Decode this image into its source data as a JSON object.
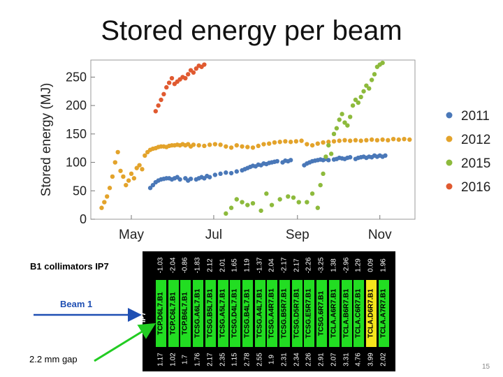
{
  "title": "Stored energy per beam",
  "page_number": "15",
  "chart_data": {
    "type": "scatter",
    "title": "Stored energy per beam",
    "xlabel": "",
    "ylabel": "Stored energy (MJ)",
    "xlim": [
      0,
      240
    ],
    "ylim": [
      0,
      280
    ],
    "x_unit": "days since April 1",
    "xtick_labels": [
      {
        "label": "May",
        "x": 30
      },
      {
        "label": "Jul",
        "x": 91
      },
      {
        "label": "Sep",
        "x": 153
      },
      {
        "label": "Nov",
        "x": 214
      }
    ],
    "yticks": [
      0,
      50,
      100,
      150,
      200,
      250
    ],
    "legend_position": "right",
    "series": [
      {
        "name": "2011",
        "color": "#4a78b8",
        "points": [
          [
            44,
            55
          ],
          [
            46,
            60
          ],
          [
            48,
            65
          ],
          [
            50,
            68
          ],
          [
            52,
            70
          ],
          [
            54,
            71
          ],
          [
            56,
            72
          ],
          [
            58,
            72
          ],
          [
            60,
            70
          ],
          [
            62,
            72
          ],
          [
            64,
            74
          ],
          [
            66,
            70
          ],
          [
            70,
            72
          ],
          [
            72,
            68
          ],
          [
            74,
            71
          ],
          [
            78,
            70
          ],
          [
            80,
            72
          ],
          [
            82,
            74
          ],
          [
            84,
            72
          ],
          [
            86,
            76
          ],
          [
            88,
            74
          ],
          [
            92,
            78
          ],
          [
            96,
            80
          ],
          [
            100,
            82
          ],
          [
            104,
            81
          ],
          [
            108,
            84
          ],
          [
            112,
            86
          ],
          [
            114,
            88
          ],
          [
            116,
            90
          ],
          [
            118,
            92
          ],
          [
            120,
            94
          ],
          [
            122,
            93
          ],
          [
            124,
            96
          ],
          [
            126,
            95
          ],
          [
            128,
            98
          ],
          [
            130,
            97
          ],
          [
            132,
            99
          ],
          [
            134,
            100
          ],
          [
            136,
            101
          ],
          [
            138,
            102
          ],
          [
            142,
            100
          ],
          [
            144,
            103
          ],
          [
            146,
            102
          ],
          [
            148,
            104
          ],
          [
            158,
            95
          ],
          [
            160,
            98
          ],
          [
            162,
            100
          ],
          [
            164,
            102
          ],
          [
            166,
            103
          ],
          [
            168,
            104
          ],
          [
            170,
            105
          ],
          [
            172,
            104
          ],
          [
            174,
            106
          ],
          [
            176,
            104
          ],
          [
            180,
            105
          ],
          [
            182,
            106
          ],
          [
            184,
            108
          ],
          [
            186,
            107
          ],
          [
            188,
            106
          ],
          [
            190,
            108
          ],
          [
            192,
            109
          ],
          [
            196,
            106
          ],
          [
            198,
            108
          ],
          [
            200,
            109
          ],
          [
            202,
            110
          ],
          [
            204,
            108
          ],
          [
            206,
            110
          ],
          [
            208,
            109
          ],
          [
            210,
            112
          ],
          [
            212,
            110
          ],
          [
            214,
            112
          ],
          [
            216,
            110
          ],
          [
            218,
            112
          ]
        ]
      },
      {
        "name": "2012",
        "color": "#e3a32b",
        "points": [
          [
            8,
            20
          ],
          [
            10,
            30
          ],
          [
            12,
            40
          ],
          [
            14,
            55
          ],
          [
            16,
            75
          ],
          [
            18,
            100
          ],
          [
            20,
            118
          ],
          [
            22,
            85
          ],
          [
            24,
            75
          ],
          [
            26,
            60
          ],
          [
            28,
            68
          ],
          [
            30,
            80
          ],
          [
            32,
            72
          ],
          [
            34,
            90
          ],
          [
            36,
            95
          ],
          [
            38,
            88
          ],
          [
            40,
            112
          ],
          [
            42,
            118
          ],
          [
            44,
            122
          ],
          [
            46,
            124
          ],
          [
            48,
            125
          ],
          [
            50,
            127
          ],
          [
            52,
            128
          ],
          [
            54,
            128
          ],
          [
            56,
            127
          ],
          [
            58,
            129
          ],
          [
            60,
            130
          ],
          [
            62,
            130
          ],
          [
            64,
            131
          ],
          [
            66,
            130
          ],
          [
            68,
            132
          ],
          [
            70,
            130
          ],
          [
            72,
            132
          ],
          [
            74,
            128
          ],
          [
            76,
            131
          ],
          [
            80,
            130
          ],
          [
            84,
            129
          ],
          [
            88,
            131
          ],
          [
            92,
            132
          ],
          [
            96,
            131
          ],
          [
            100,
            128
          ],
          [
            104,
            126
          ],
          [
            108,
            130
          ],
          [
            112,
            128
          ],
          [
            116,
            127
          ],
          [
            120,
            126
          ],
          [
            124,
            129
          ],
          [
            128,
            132
          ],
          [
            132,
            133
          ],
          [
            136,
            135
          ],
          [
            140,
            136
          ],
          [
            144,
            137
          ],
          [
            148,
            136
          ],
          [
            152,
            137
          ],
          [
            156,
            138
          ],
          [
            160,
            132
          ],
          [
            164,
            130
          ],
          [
            168,
            133
          ],
          [
            172,
            135
          ],
          [
            176,
            136
          ],
          [
            180,
            137
          ],
          [
            184,
            138
          ],
          [
            188,
            139
          ],
          [
            192,
            138
          ],
          [
            196,
            139
          ],
          [
            200,
            138
          ],
          [
            204,
            139
          ],
          [
            208,
            140
          ],
          [
            212,
            139
          ],
          [
            216,
            140
          ],
          [
            220,
            139
          ],
          [
            224,
            141
          ],
          [
            228,
            140
          ],
          [
            232,
            141
          ],
          [
            236,
            140
          ]
        ]
      },
      {
        "name": "2015",
        "color": "#8dba3c",
        "points": [
          [
            100,
            10
          ],
          [
            104,
            20
          ],
          [
            108,
            35
          ],
          [
            112,
            30
          ],
          [
            116,
            25
          ],
          [
            120,
            28
          ],
          [
            126,
            15
          ],
          [
            130,
            45
          ],
          [
            134,
            25
          ],
          [
            140,
            35
          ],
          [
            146,
            40
          ],
          [
            150,
            38
          ],
          [
            154,
            30
          ],
          [
            160,
            30
          ],
          [
            164,
            45
          ],
          [
            168,
            20
          ],
          [
            170,
            60
          ],
          [
            172,
            80
          ],
          [
            174,
            110
          ],
          [
            176,
            130
          ],
          [
            178,
            115
          ],
          [
            180,
            150
          ],
          [
            182,
            160
          ],
          [
            184,
            175
          ],
          [
            186,
            185
          ],
          [
            188,
            170
          ],
          [
            190,
            165
          ],
          [
            192,
            180
          ],
          [
            194,
            200
          ],
          [
            196,
            210
          ],
          [
            198,
            205
          ],
          [
            200,
            215
          ],
          [
            202,
            225
          ],
          [
            204,
            235
          ],
          [
            206,
            230
          ],
          [
            208,
            245
          ],
          [
            210,
            255
          ],
          [
            212,
            268
          ],
          [
            214,
            272
          ],
          [
            216,
            275
          ]
        ]
      },
      {
        "name": "2016",
        "color": "#e05a30",
        "points": [
          [
            48,
            190
          ],
          [
            50,
            200
          ],
          [
            52,
            210
          ],
          [
            54,
            220
          ],
          [
            56,
            232
          ],
          [
            58,
            240
          ],
          [
            60,
            248
          ],
          [
            62,
            238
          ],
          [
            64,
            242
          ],
          [
            66,
            246
          ],
          [
            68,
            250
          ],
          [
            70,
            248
          ],
          [
            72,
            255
          ],
          [
            74,
            262
          ],
          [
            76,
            258
          ],
          [
            78,
            265
          ],
          [
            80,
            270
          ],
          [
            82,
            268
          ],
          [
            84,
            272
          ]
        ]
      }
    ]
  },
  "collimators": {
    "heading": "B1 collimators IP7",
    "ip_label": "IP7",
    "beam_label": "Beam 1",
    "gap_label": "2.2 mm gap",
    "highlight_color": "#f5e51c",
    "bar_color": "#22dd22",
    "items": [
      {
        "name": "TCP.D6L7.B1",
        "top": "-1.03",
        "bottom": "1.17"
      },
      {
        "name": "TCP.C6L7.B1",
        "top": "-2.04",
        "bottom": "1.02"
      },
      {
        "name": "TCP.B6L7.B1",
        "top": "-0.86",
        "bottom": "1.7"
      },
      {
        "name": "TCSG.A6L7.B1",
        "top": "-1.83",
        "bottom": "1.76"
      },
      {
        "name": "TCSG.B5L7.B1",
        "top": "2.12",
        "bottom": "2.17"
      },
      {
        "name": "TCSG.A5L7.B1",
        "top": "2.01",
        "bottom": "2.35"
      },
      {
        "name": "TCSG.D4L7.B1",
        "top": "1.65",
        "bottom": "1.15"
      },
      {
        "name": "TCSG.B4L7.B1",
        "top": "1.19",
        "bottom": "2.78"
      },
      {
        "name": "TCSG.A4L7.B1",
        "top": "-1.37",
        "bottom": "2.55"
      },
      {
        "name": "TCSG.A4R7.B1",
        "top": "2.04",
        "bottom": "1.9"
      },
      {
        "name": "TCSG.B5R7.B1",
        "top": "-2.17",
        "bottom": "2.31"
      },
      {
        "name": "TCSG.D5R7.B1",
        "top": "2.17",
        "bottom": "2.34"
      },
      {
        "name": "TCSG.E5R7.B1",
        "top": "-2.26",
        "bottom": "2.26"
      },
      {
        "name": "TCSG.6R7.B1",
        "top": "-3.25",
        "bottom": "2.91"
      },
      {
        "name": "TCLA.A6R7.B1",
        "top": "1.38",
        "bottom": "2.07"
      },
      {
        "name": "TCLA.B6R7.B1",
        "top": "-2.96",
        "bottom": "3.31"
      },
      {
        "name": "TCLA.C6R7.B1",
        "top": "1.29",
        "bottom": "4.76"
      },
      {
        "name": "TCLA.D6R7.B1",
        "top": "0.09",
        "bottom": "3.99",
        "highlight": true
      },
      {
        "name": "TCLA.A7R7.B1",
        "top": "1.96",
        "bottom": "2.02"
      }
    ]
  }
}
